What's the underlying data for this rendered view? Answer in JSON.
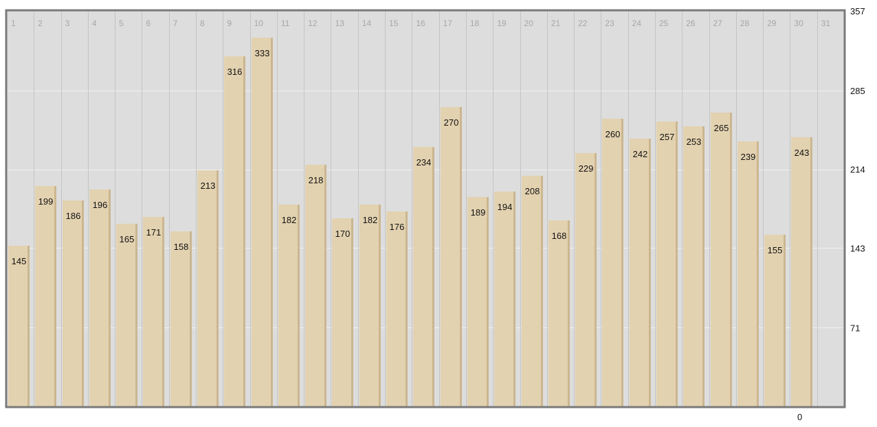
{
  "chart_data": {
    "type": "bar",
    "title": "",
    "xlabel": "",
    "ylabel": "",
    "categories": [
      "1",
      "2",
      "3",
      "4",
      "5",
      "6",
      "7",
      "8",
      "9",
      "10",
      "11",
      "12",
      "13",
      "14",
      "15",
      "16",
      "17",
      "18",
      "19",
      "20",
      "21",
      "22",
      "23",
      "24",
      "25",
      "26",
      "27",
      "28",
      "29",
      "30",
      "31"
    ],
    "values": [
      145,
      199,
      186,
      196,
      165,
      171,
      158,
      213,
      316,
      333,
      182,
      218,
      170,
      182,
      176,
      234,
      270,
      189,
      194,
      208,
      168,
      229,
      260,
      242,
      257,
      253,
      265,
      239,
      155,
      243,
      null
    ],
    "value_labels": [
      "145",
      "199",
      "186",
      "196",
      "165",
      "171",
      "158",
      "213",
      "316",
      "333",
      "182",
      "218",
      "170",
      "182",
      "176",
      "234",
      "270",
      "189",
      "194",
      "208",
      "168",
      "229",
      "260",
      "242",
      "257",
      "253",
      "265",
      "239",
      "155",
      "243",
      ""
    ],
    "ylim": [
      0,
      357
    ],
    "y_ticks": [
      71,
      143,
      214,
      285,
      357
    ],
    "y_tick_labels": [
      "71",
      "143",
      "214",
      "285",
      "357"
    ],
    "y_zero_label": "0",
    "y_axis_position": "right",
    "grid": true,
    "legend": "none",
    "colors": {
      "plot_background": "#dddddd",
      "bar_fill": "#e3d2b0",
      "bar_shade": "#cbb690",
      "grid_line": "#f2f2f2",
      "column_divider": "#c4c4c4",
      "frame": "#7a7a7a",
      "day_label": "#a6a6a6",
      "value_label": "#111111",
      "axis_label": "#111111"
    }
  }
}
